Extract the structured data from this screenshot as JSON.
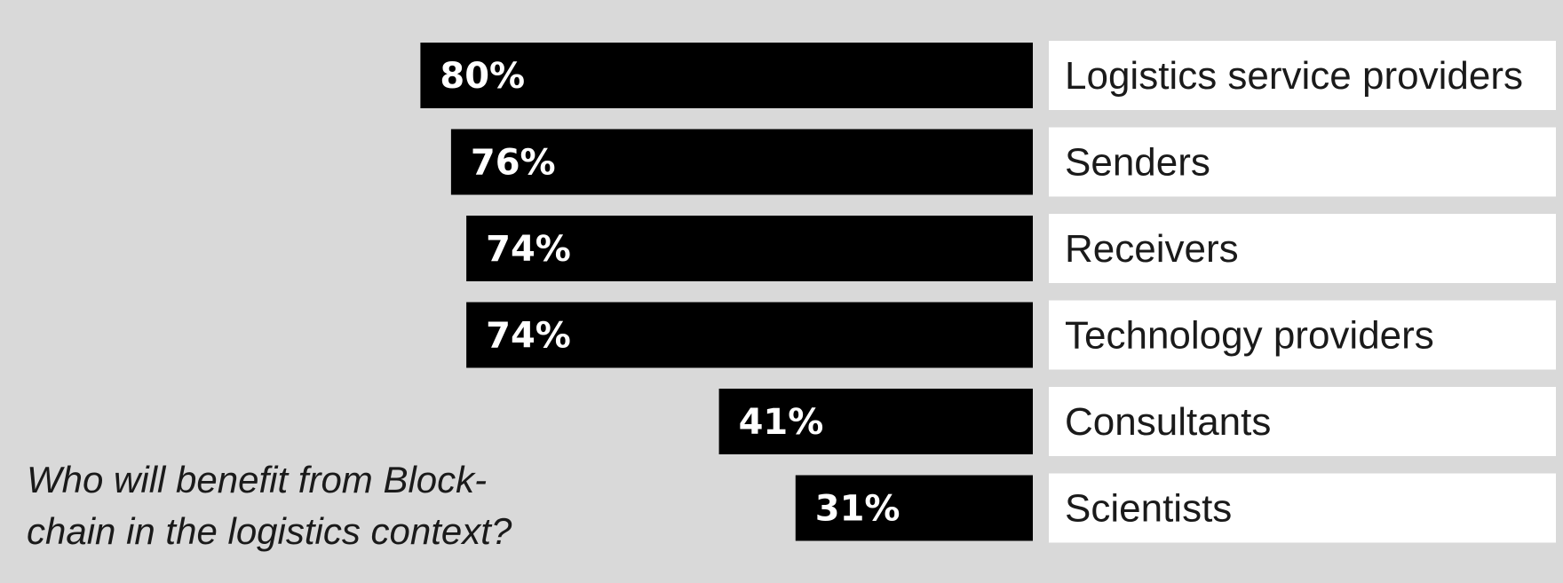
{
  "chart_data": {
    "type": "bar",
    "orientation": "horizontal",
    "categories": [
      "Logistics service providers",
      "Senders",
      "Receivers",
      "Technology providers",
      "Consultants",
      "Scientists"
    ],
    "values": [
      80,
      76,
      74,
      74,
      41,
      31
    ],
    "value_labels": [
      "80%",
      "76%",
      "74%",
      "74%",
      "41%",
      "31%"
    ],
    "unit": "%",
    "title_lines": [
      "Who will benefit from Block-",
      "chain in the logistics context?"
    ],
    "xlim": [
      0,
      100
    ],
    "grid": false,
    "legend": "none",
    "colors": {
      "background": "#d9d9d9",
      "bar": "#000000",
      "bar_text": "#ffffff",
      "label_box": "#ffffff",
      "label_text": "#1a1a1a"
    }
  }
}
